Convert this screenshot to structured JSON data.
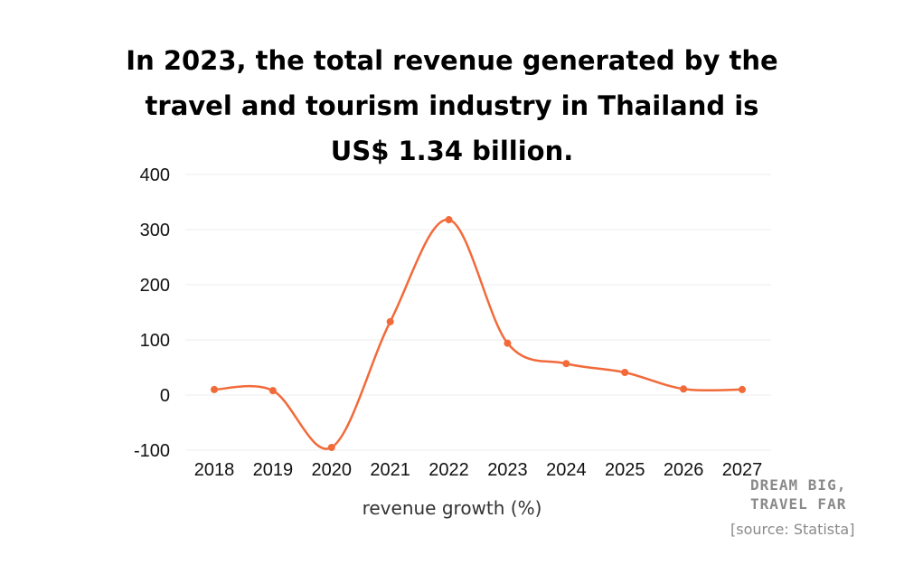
{
  "header": {
    "title_lines": [
      "In 2023, the total revenue generated by the",
      "travel and tourism industry in Thailand is",
      "US$ 1.34 billion."
    ]
  },
  "chart_data": {
    "type": "line",
    "title": "In 2023, the total revenue generated by the travel and tourism industry in Thailand is US$ 1.34 billion.",
    "xlabel": "revenue growth (%)",
    "ylabel": "",
    "categories": [
      "2018",
      "2019",
      "2020",
      "2021",
      "2022",
      "2023",
      "2024",
      "2025",
      "2026",
      "2027"
    ],
    "series": [
      {
        "values": [
          10,
          8,
          -95,
          133,
          318,
          94,
          57,
          41,
          11,
          10
        ]
      }
    ],
    "ylim": [
      -100,
      400
    ],
    "yticks": [
      "400",
      "300",
      "200",
      "100",
      "0",
      "-100"
    ],
    "grid": true,
    "legend": "none",
    "colors": {
      "line": "#f26a3a",
      "grid": "#eeeeee"
    }
  },
  "footer": {
    "brand_lines": [
      "DREAM BIG,",
      "TRAVEL FAR"
    ],
    "source": "[source: Statista]"
  }
}
